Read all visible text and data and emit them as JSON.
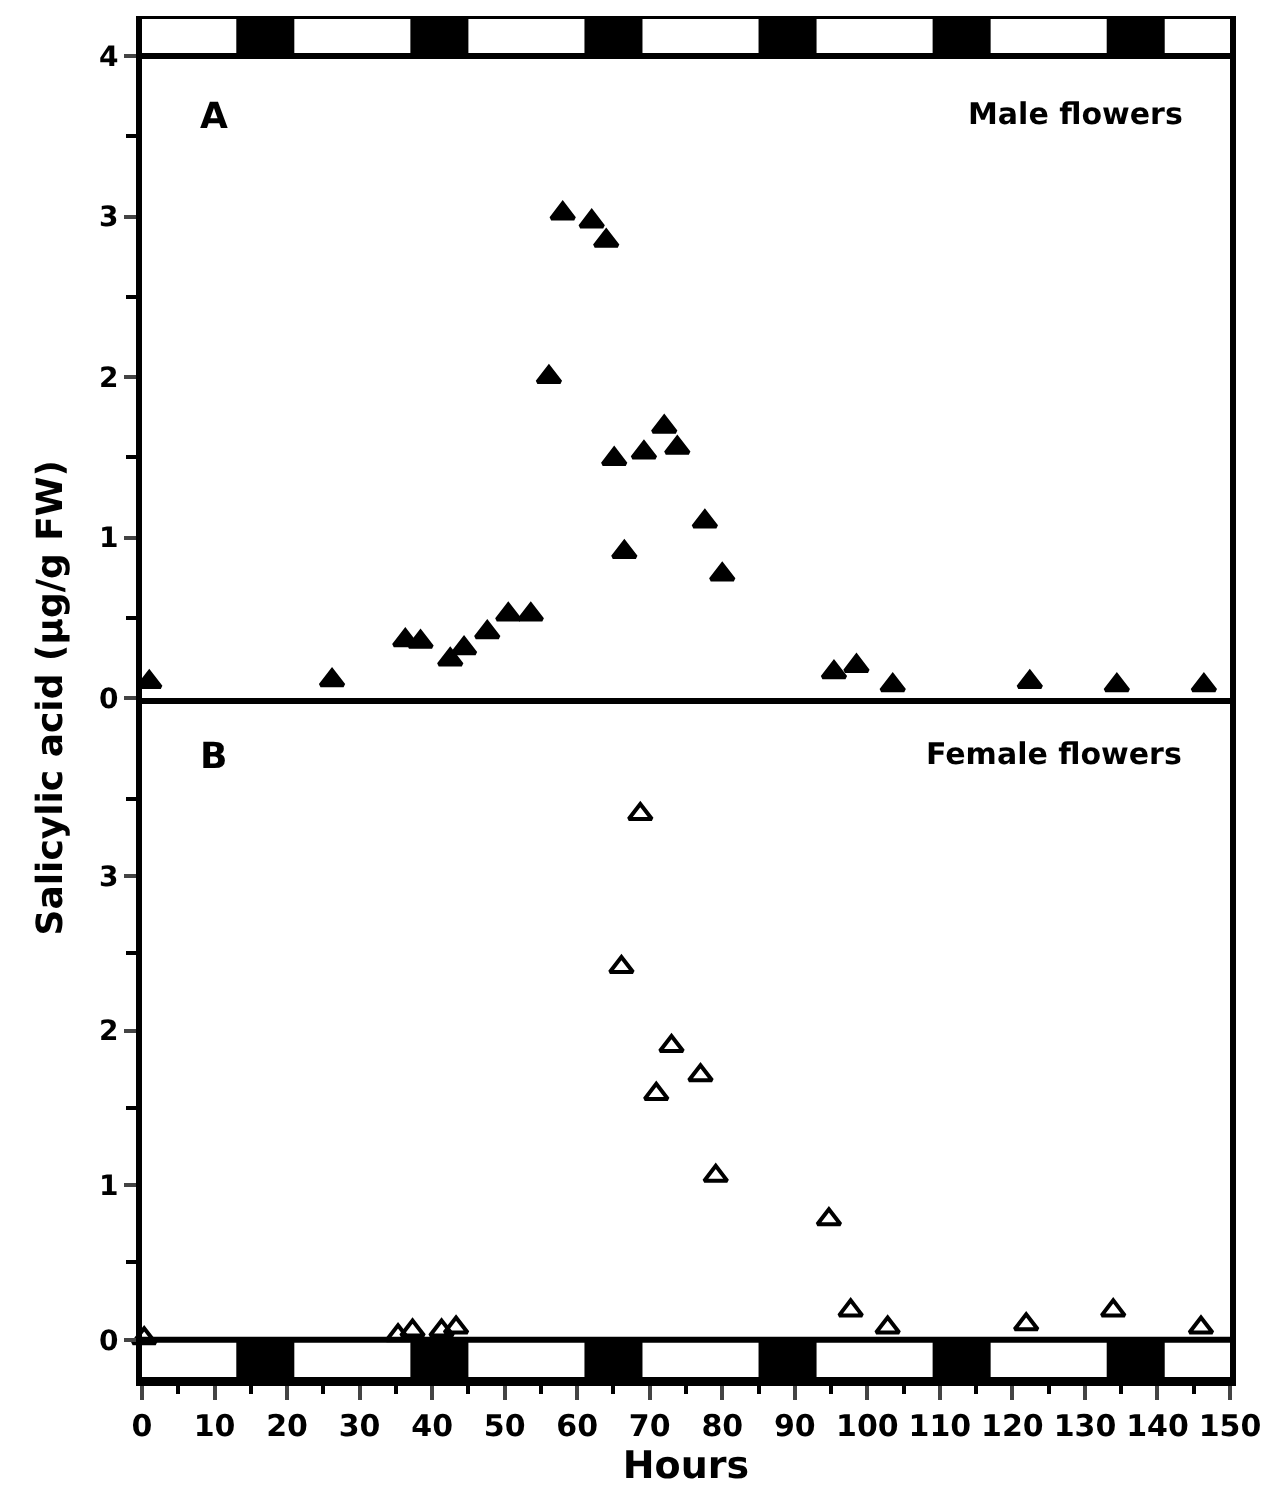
{
  "chart_data": [
    {
      "type": "scatter",
      "ylabel": "Salicylic acid (µg/g FW)",
      "annotations": [
        "A",
        "Male flowers"
      ],
      "series": [
        {
          "color": "#000000",
          "marker": "triangle",
          "x": [
            1,
            26.2,
            36.3,
            38.4,
            42.5,
            44.4,
            47.6,
            50.5,
            53.6,
            56.1,
            58,
            62,
            64,
            65.1,
            66.5,
            69.2,
            72.0,
            73.8,
            77.6,
            80.0,
            95.4,
            98.5,
            103.5,
            122.4,
            134.4,
            146.4
          ],
          "values": [
            0.1,
            0.11,
            0.36,
            0.35,
            0.24,
            0.31,
            0.41,
            0.52,
            0.52,
            2.0,
            3.02,
            2.97,
            2.85,
            1.49,
            0.91,
            1.53,
            1.69,
            1.56,
            1.1,
            0.77,
            0.16,
            0.2,
            0.08,
            0.1,
            0.08,
            0.08
          ]
        }
      ],
      "xlim": [
        0,
        150
      ],
      "ylim": [
        0,
        4.25
      ],
      "yticks": [
        0,
        {
          "value": 0.5,
          "label": null
        },
        1,
        {
          "value": 1.5,
          "label": null
        },
        2,
        {
          "value": 2.5,
          "label": null
        },
        3,
        {
          "value": 3.5,
          "label": null
        },
        4
      ],
      "tick_labels": "y",
      "bands": [
        {
          "axis": "x",
          "from": 13,
          "to": 21,
          "color": "#000000"
        },
        {
          "axis": "x",
          "from": 37,
          "to": 45,
          "color": "#000000"
        },
        {
          "axis": "x",
          "from": 61,
          "to": 69,
          "color": "#000000"
        },
        {
          "axis": "x",
          "from": 85,
          "to": 93,
          "color": "#000000"
        },
        {
          "axis": "x",
          "from": 109,
          "to": 117,
          "color": "#000000"
        },
        {
          "axis": "x",
          "from": 133,
          "to": 141,
          "color": "#000000"
        }
      ]
    },
    {
      "type": "scatter",
      "xlabel": "Hours",
      "annotations": [
        "B",
        "Female flowers"
      ],
      "series": [
        {
          "color": "#000000",
          "marker": "triangle-open",
          "x": [
            0.3,
            35.3,
            37.3,
            41.3,
            43.3,
            66.1,
            68.7,
            70.9,
            73.0,
            77.0,
            79.1,
            94.7,
            97.7,
            102.8,
            121.9,
            133.9,
            146.0
          ],
          "values": [
            0.01,
            0.03,
            0.06,
            0.06,
            0.08,
            2.41,
            3.4,
            1.59,
            1.9,
            1.71,
            1.06,
            0.78,
            0.19,
            0.08,
            0.1,
            0.19,
            0.08
          ]
        }
      ],
      "xlim": [
        0,
        150
      ],
      "ylim": [
        -0.26,
        4.15
      ],
      "xticks": [
        0,
        {
          "value": 5,
          "label": null
        },
        10,
        {
          "value": 15,
          "label": null
        },
        20,
        {
          "value": 25,
          "label": null
        },
        30,
        {
          "value": 35,
          "label": null
        },
        40,
        {
          "value": 45,
          "label": null
        },
        50,
        {
          "value": 55,
          "label": null
        },
        60,
        {
          "value": 65,
          "label": null
        },
        70,
        {
          "value": 75,
          "label": null
        },
        80,
        {
          "value": 85,
          "label": null
        },
        90,
        {
          "value": 95,
          "label": null
        },
        100,
        {
          "value": 105,
          "label": null
        },
        110,
        {
          "value": 115,
          "label": null
        },
        120,
        {
          "value": 125,
          "label": null
        },
        130,
        {
          "value": 135,
          "label": null
        },
        140,
        {
          "value": 145,
          "label": null
        },
        150
      ],
      "yticks": [
        0,
        {
          "value": 0.5,
          "label": null
        },
        1,
        {
          "value": 1.5,
          "label": null
        },
        2,
        {
          "value": 2.5,
          "label": null
        },
        3,
        {
          "value": 3.5,
          "label": null
        }
      ],
      "bands": [
        {
          "axis": "x",
          "from": 13,
          "to": 21,
          "color": "#000000"
        },
        {
          "axis": "x",
          "from": 37,
          "to": 45,
          "color": "#000000"
        },
        {
          "axis": "x",
          "from": 61,
          "to": 69,
          "color": "#000000"
        },
        {
          "axis": "x",
          "from": 85,
          "to": 93,
          "color": "#000000"
        },
        {
          "axis": "x",
          "from": 109,
          "to": 117,
          "color": "#000000"
        },
        {
          "axis": "x",
          "from": 133,
          "to": 141,
          "color": "#000000"
        }
      ]
    }
  ]
}
